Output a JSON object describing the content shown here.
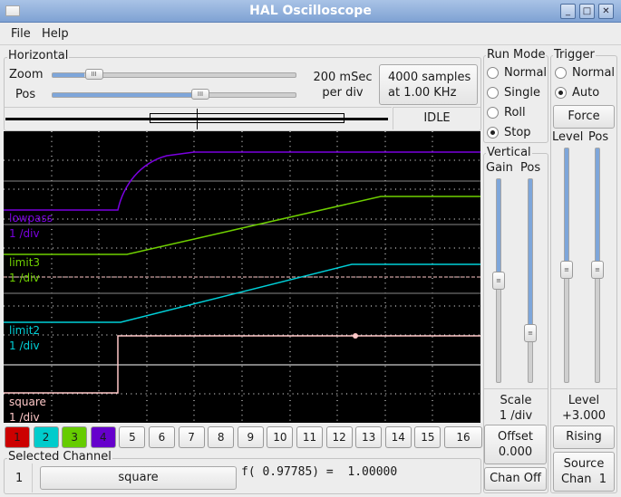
{
  "window": {
    "title": "HAL Oscilloscope"
  },
  "menu": {
    "file": "File",
    "help": "Help"
  },
  "horizontal": {
    "label": "Horizontal",
    "zoom_label": "Zoom",
    "pos_label": "Pos",
    "zoom_value": 0.13,
    "pos_value": 0.6,
    "timebase_line1": "200 mSec",
    "timebase_line2": "per div",
    "samples_line1": "4000 samples",
    "samples_line2": "at 1.00 KHz",
    "status": "IDLE"
  },
  "traces": [
    {
      "name": "lowpass",
      "scale": "1 /div",
      "color": "#7a00e0"
    },
    {
      "name": "limit3",
      "scale": "1 /div",
      "color": "#6fd000"
    },
    {
      "name": "limit2",
      "scale": "1 /div",
      "color": "#00d0d8"
    },
    {
      "name": "square",
      "scale": "1 /div",
      "color": "#ffc8c8"
    }
  ],
  "channels": [
    "1",
    "2",
    "3",
    "4",
    "5",
    "6",
    "7",
    "8",
    "9",
    "10",
    "11",
    "12",
    "13",
    "14",
    "15",
    "16"
  ],
  "channel_colors": [
    "#cc0000",
    "#00cccc",
    "#66cc00",
    "#6600cc"
  ],
  "selected": {
    "label": "Selected Channel",
    "number": "1",
    "name": "square",
    "readout": "f( 0.97785) =  1.00000"
  },
  "run_mode": {
    "label": "Run Mode",
    "options": [
      "Normal",
      "Single",
      "Roll",
      "Stop"
    ],
    "selected": "Stop"
  },
  "trigger": {
    "label": "Trigger",
    "options": [
      "Normal",
      "Auto"
    ],
    "selected": "Auto",
    "force": "Force",
    "level_label": "Level",
    "pos_label": "Pos",
    "level_slider": 0.52,
    "pos_slider": 0.52,
    "level_title": "Level",
    "level_value": "+3.000",
    "edge": "Rising",
    "source_line1": "Source",
    "source_line2": "Chan  1"
  },
  "vertical": {
    "label": "Vertical",
    "gain_label": "Gain",
    "pos_label": "Pos",
    "gain_slider": 0.5,
    "pos_slider": 0.78,
    "scale_title": "Scale",
    "scale_value": "1 /div",
    "offset_line1": "Offset",
    "offset_line2": "0.000",
    "chan_off": "Chan Off"
  }
}
